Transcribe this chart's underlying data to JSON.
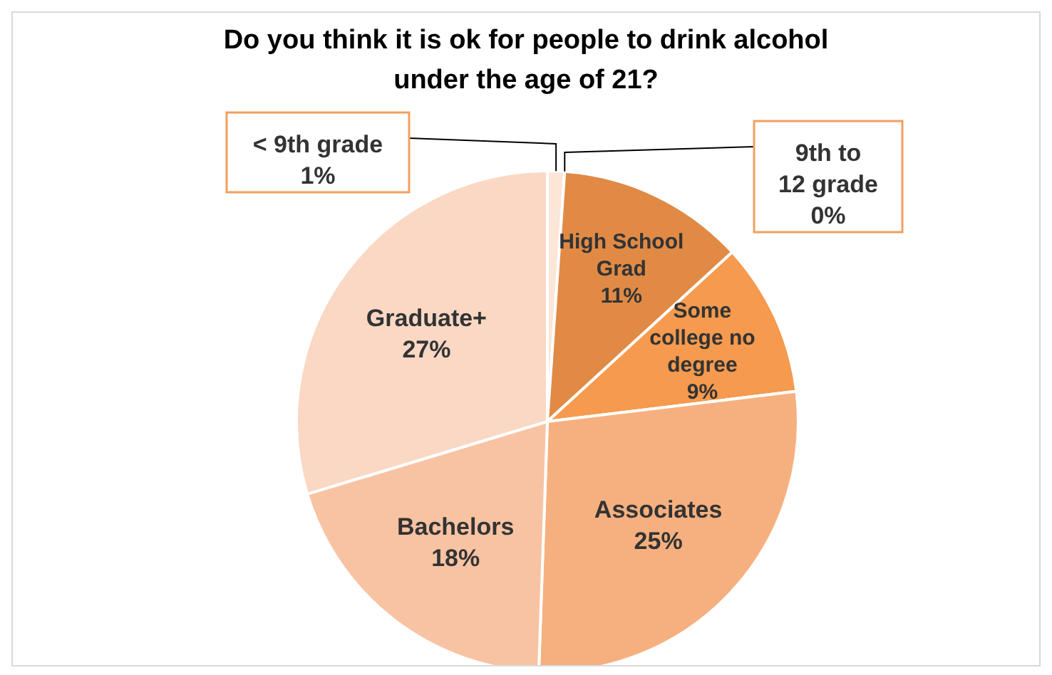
{
  "chart_data": {
    "type": "pie",
    "title": "Do you think it is ok for people to drink alcohol under the age of 21?",
    "categories": [
      "< 9th grade",
      "9th to 12 grade",
      "High School Grad",
      "Some college no degree",
      "Associates",
      "Bachelors",
      "Graduate+"
    ],
    "values": [
      1,
      0,
      11,
      9,
      25,
      18,
      27
    ],
    "value_labels": [
      "1%",
      "0%",
      "11%",
      "9%",
      "25%",
      "18%",
      "27%"
    ],
    "colors": [
      "#fce6d8",
      "#fbdcc8",
      "#e08a45",
      "#f59a4e",
      "#f6b07f",
      "#f8c3a3",
      "#fad8c4"
    ]
  }
}
